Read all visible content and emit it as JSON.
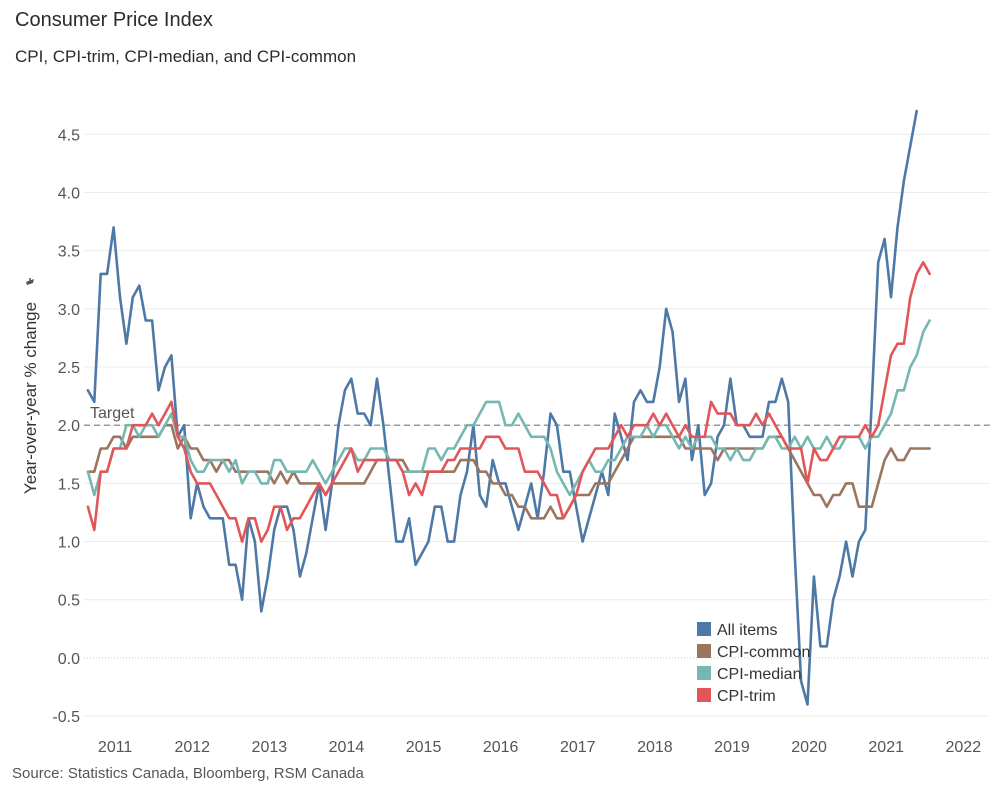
{
  "header": {
    "title": "Consumer Price Index",
    "subtitle": "CPI, CPI-trim, CPI-median, and CPI-common"
  },
  "footer": {
    "source": "Source: Statistics Canada, Bloomberg, RSM Canada"
  },
  "chart_data": {
    "type": "line",
    "ylabel": "Year-over-year % change",
    "ylim": [
      -0.6,
      4.8
    ],
    "yticks": [
      -0.5,
      0.0,
      0.5,
      1.0,
      1.5,
      2.0,
      2.5,
      3.0,
      3.5,
      4.0,
      4.5
    ],
    "ytick_labels": [
      "-0.5",
      "0.0",
      "0.5",
      "1.0",
      "1.5",
      "2.0",
      "2.5",
      "3.0",
      "3.5",
      "4.0",
      "4.5"
    ],
    "x_start": 2010.75,
    "x_step_months": 1,
    "xlim": [
      2010.7,
      2022.45
    ],
    "xticks": [
      2011,
      2012,
      2013,
      2014,
      2015,
      2016,
      2017,
      2018,
      2019,
      2020,
      2021,
      2022
    ],
    "target": {
      "value": 2.0,
      "label": "Target"
    },
    "legend_position": "bottom-right",
    "series": [
      {
        "name": "All items",
        "color": "#4e79a7",
        "values": [
          2.3,
          2.2,
          3.3,
          3.3,
          3.7,
          3.1,
          2.7,
          3.1,
          3.2,
          2.9,
          2.9,
          2.3,
          2.5,
          2.6,
          1.9,
          2.0,
          1.2,
          1.5,
          1.3,
          1.2,
          1.2,
          1.2,
          0.8,
          0.8,
          0.5,
          1.2,
          1.0,
          0.4,
          0.7,
          1.1,
          1.3,
          1.3,
          1.1,
          0.7,
          0.9,
          1.2,
          1.5,
          1.1,
          1.5,
          2.0,
          2.3,
          2.4,
          2.1,
          2.1,
          2.0,
          2.4,
          2.0,
          1.5,
          1.0,
          1.0,
          1.2,
          0.8,
          0.9,
          1.0,
          1.3,
          1.3,
          1.0,
          1.0,
          1.4,
          1.6,
          2.0,
          1.4,
          1.3,
          1.7,
          1.5,
          1.5,
          1.3,
          1.1,
          1.3,
          1.5,
          1.2,
          1.6,
          2.1,
          2.0,
          1.6,
          1.6,
          1.3,
          1.0,
          1.2,
          1.4,
          1.6,
          1.4,
          2.1,
          1.9,
          1.7,
          2.2,
          2.3,
          2.2,
          2.2,
          2.5,
          3.0,
          2.8,
          2.2,
          2.4,
          1.7,
          2.0,
          1.4,
          1.5,
          1.9,
          2.0,
          2.4,
          2.0,
          2.0,
          1.9,
          1.9,
          1.9,
          2.2,
          2.2,
          2.4,
          2.2,
          0.9,
          -0.2,
          -0.4,
          0.7,
          0.1,
          0.1,
          0.5,
          0.7,
          1.0,
          0.7,
          1.0,
          1.1,
          2.2,
          3.4,
          3.6,
          3.1,
          3.7,
          4.1,
          4.4,
          4.7
        ]
      },
      {
        "name": "CPI-common",
        "color": "#9c755f",
        "values": [
          1.6,
          1.6,
          1.8,
          1.8,
          1.9,
          1.9,
          1.8,
          1.9,
          1.9,
          1.9,
          1.9,
          1.9,
          2.0,
          2.0,
          1.8,
          1.9,
          1.8,
          1.8,
          1.7,
          1.7,
          1.6,
          1.7,
          1.7,
          1.6,
          1.6,
          1.6,
          1.6,
          1.6,
          1.6,
          1.5,
          1.6,
          1.5,
          1.6,
          1.5,
          1.5,
          1.5,
          1.5,
          1.4,
          1.5,
          1.5,
          1.5,
          1.5,
          1.5,
          1.5,
          1.6,
          1.7,
          1.7,
          1.7,
          1.7,
          1.7,
          1.6,
          1.6,
          1.6,
          1.6,
          1.6,
          1.6,
          1.6,
          1.6,
          1.7,
          1.7,
          1.7,
          1.6,
          1.6,
          1.5,
          1.5,
          1.4,
          1.4,
          1.3,
          1.3,
          1.2,
          1.2,
          1.2,
          1.3,
          1.2,
          1.2,
          1.3,
          1.4,
          1.4,
          1.4,
          1.5,
          1.5,
          1.5,
          1.6,
          1.7,
          1.8,
          1.9,
          1.9,
          1.9,
          1.9,
          1.9,
          1.9,
          1.9,
          1.9,
          1.8,
          1.8,
          1.8,
          1.8,
          1.8,
          1.7,
          1.8,
          1.8,
          1.8,
          1.8,
          1.8,
          1.8,
          1.8,
          1.9,
          1.9,
          1.9,
          1.8,
          1.7,
          1.6,
          1.5,
          1.4,
          1.4,
          1.3,
          1.4,
          1.4,
          1.5,
          1.5,
          1.3,
          1.3,
          1.3,
          1.5,
          1.7,
          1.8,
          1.7,
          1.7,
          1.8,
          1.8,
          1.8,
          1.8
        ]
      },
      {
        "name": "CPI-median",
        "color": "#76b7b2",
        "values": [
          1.6,
          1.4,
          1.6,
          1.6,
          1.8,
          1.8,
          2.0,
          2.0,
          1.9,
          2.0,
          2.0,
          1.9,
          2.0,
          2.1,
          1.9,
          1.9,
          1.7,
          1.6,
          1.6,
          1.7,
          1.7,
          1.7,
          1.6,
          1.7,
          1.5,
          1.6,
          1.6,
          1.5,
          1.5,
          1.7,
          1.7,
          1.6,
          1.6,
          1.6,
          1.6,
          1.7,
          1.6,
          1.5,
          1.6,
          1.7,
          1.8,
          1.8,
          1.7,
          1.7,
          1.8,
          1.8,
          1.8,
          1.7,
          1.7,
          1.6,
          1.6,
          1.6,
          1.6,
          1.8,
          1.8,
          1.7,
          1.8,
          1.8,
          1.9,
          2.0,
          2.0,
          2.1,
          2.2,
          2.2,
          2.2,
          2.0,
          2.0,
          2.1,
          2.0,
          1.9,
          1.9,
          1.9,
          1.8,
          1.6,
          1.5,
          1.4,
          1.5,
          1.6,
          1.7,
          1.6,
          1.6,
          1.7,
          1.7,
          1.8,
          1.9,
          1.9,
          1.9,
          2.0,
          1.9,
          2.0,
          2.0,
          1.9,
          1.8,
          1.9,
          1.8,
          1.9,
          1.9,
          1.9,
          1.8,
          1.8,
          1.7,
          1.8,
          1.7,
          1.7,
          1.8,
          1.8,
          1.9,
          1.9,
          1.8,
          1.8,
          1.9,
          1.8,
          1.9,
          1.8,
          1.8,
          1.9,
          1.8,
          1.8,
          1.9,
          1.9,
          1.9,
          1.8,
          1.9,
          1.9,
          2.0,
          2.1,
          2.3,
          2.3,
          2.5,
          2.6,
          2.8,
          2.9
        ]
      },
      {
        "name": "CPI-trim",
        "color": "#e15759",
        "values": [
          1.3,
          1.1,
          1.6,
          1.6,
          1.8,
          1.8,
          1.8,
          2.0,
          2.0,
          2.0,
          2.1,
          2.0,
          2.1,
          2.2,
          1.9,
          1.8,
          1.6,
          1.5,
          1.5,
          1.5,
          1.4,
          1.3,
          1.2,
          1.2,
          1.0,
          1.2,
          1.2,
          1.0,
          1.1,
          1.3,
          1.3,
          1.1,
          1.2,
          1.2,
          1.3,
          1.4,
          1.5,
          1.4,
          1.5,
          1.6,
          1.7,
          1.8,
          1.6,
          1.7,
          1.7,
          1.7,
          1.7,
          1.7,
          1.7,
          1.6,
          1.4,
          1.5,
          1.4,
          1.6,
          1.6,
          1.6,
          1.7,
          1.7,
          1.8,
          1.8,
          1.8,
          1.8,
          1.9,
          1.9,
          1.9,
          1.8,
          1.8,
          1.8,
          1.6,
          1.6,
          1.6,
          1.5,
          1.4,
          1.4,
          1.2,
          1.3,
          1.4,
          1.6,
          1.7,
          1.8,
          1.8,
          1.8,
          1.9,
          2.0,
          1.9,
          2.0,
          2.0,
          2.0,
          2.1,
          2.0,
          2.1,
          2.0,
          1.9,
          2.0,
          1.9,
          1.9,
          1.9,
          2.2,
          2.1,
          2.1,
          2.1,
          2.0,
          2.0,
          2.0,
          2.1,
          2.0,
          2.1,
          2.0,
          1.9,
          1.8,
          1.8,
          1.8,
          1.5,
          1.8,
          1.7,
          1.7,
          1.8,
          1.9,
          1.9,
          1.9,
          1.9,
          2.0,
          1.9,
          2.0,
          2.3,
          2.6,
          2.7,
          2.7,
          3.1,
          3.3,
          3.4,
          3.3
        ]
      }
    ]
  }
}
